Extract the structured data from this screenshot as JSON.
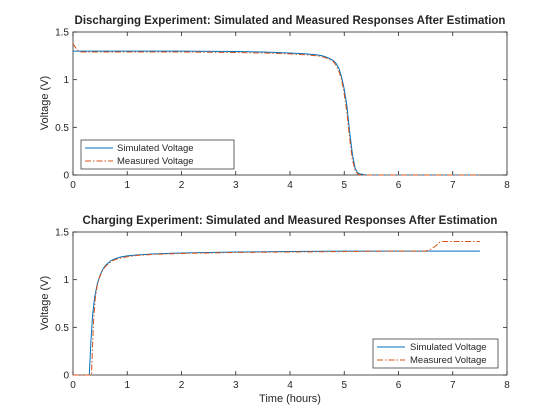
{
  "chart_data": [
    {
      "type": "line",
      "title": "Discharging Experiment: Simulated and Measured Responses After Estimation",
      "xlabel": "",
      "ylabel": "Voltage (V)",
      "xlim": [
        0,
        8
      ],
      "ylim": [
        0,
        1.5
      ],
      "xticks": [
        "0",
        "1",
        "2",
        "3",
        "4",
        "5",
        "6",
        "7",
        "8"
      ],
      "yticks": [
        "0",
        "0.5",
        "1",
        "1.5"
      ],
      "grid": false,
      "legend_position": "bottom-left",
      "series": [
        {
          "name": "Simulated Voltage",
          "color": "#0072BD",
          "style": "solid",
          "x": [
            0,
            0.5,
            1,
            2,
            3,
            3.5,
            4,
            4.3,
            4.5,
            4.6,
            4.7,
            4.8,
            4.85,
            4.9,
            4.95,
            5.0,
            5.05,
            5.1,
            5.15,
            5.2,
            5.25,
            5.3,
            5.4,
            5.6,
            6,
            7,
            7.5
          ],
          "y": [
            1.3,
            1.3,
            1.3,
            1.3,
            1.295,
            1.29,
            1.28,
            1.27,
            1.26,
            1.25,
            1.23,
            1.2,
            1.17,
            1.12,
            1.03,
            0.9,
            0.72,
            0.45,
            0.22,
            0.07,
            0.02,
            0.01,
            0.0,
            0.0,
            0.0,
            0.0,
            0.0
          ]
        },
        {
          "name": "Measured Voltage",
          "color": "#D95319",
          "style": "dashdot",
          "x": [
            0,
            0.03,
            0.08,
            0.15,
            0.5,
            1,
            2,
            3,
            3.5,
            4,
            4.3,
            4.5,
            4.6,
            4.7,
            4.8,
            4.85,
            4.9,
            4.95,
            5.0,
            5.05,
            5.1,
            5.15,
            5.2,
            5.25,
            5.3,
            5.4,
            5.6,
            6,
            7,
            7.5
          ],
          "y": [
            1.38,
            1.35,
            1.31,
            1.29,
            1.29,
            1.29,
            1.29,
            1.285,
            1.28,
            1.27,
            1.26,
            1.25,
            1.24,
            1.22,
            1.19,
            1.15,
            1.09,
            1.0,
            0.85,
            0.65,
            0.38,
            0.16,
            0.05,
            0.01,
            0.0,
            0.0,
            0.0,
            0.0,
            0.0,
            0.0
          ]
        }
      ]
    },
    {
      "type": "line",
      "title": "Charging Experiment: Simulated and Measured Responses After Estimation",
      "xlabel": "Time (hours)",
      "ylabel": "Voltage (V)",
      "xlim": [
        0,
        8
      ],
      "ylim": [
        0,
        1.5
      ],
      "xticks": [
        "0",
        "1",
        "2",
        "3",
        "4",
        "5",
        "6",
        "7",
        "8"
      ],
      "yticks": [
        "0",
        "0.5",
        "1",
        "1.5"
      ],
      "grid": false,
      "legend_position": "bottom-right",
      "series": [
        {
          "name": "Simulated Voltage",
          "color": "#0072BD",
          "style": "solid",
          "x": [
            0.3,
            0.33,
            0.36,
            0.4,
            0.45,
            0.5,
            0.55,
            0.6,
            0.7,
            0.8,
            0.9,
            1.0,
            1.2,
            1.5,
            2,
            3,
            4,
            5,
            6,
            7,
            7.5
          ],
          "y": [
            0.0,
            0.35,
            0.62,
            0.82,
            0.96,
            1.05,
            1.11,
            1.15,
            1.2,
            1.225,
            1.24,
            1.25,
            1.26,
            1.27,
            1.28,
            1.29,
            1.295,
            1.3,
            1.3,
            1.3,
            1.3
          ]
        },
        {
          "name": "Measured Voltage",
          "color": "#D95319",
          "style": "dashdot",
          "x": [
            0,
            0.3,
            0.34,
            0.36,
            0.38,
            0.41,
            0.45,
            0.5,
            0.55,
            0.6,
            0.7,
            0.8,
            0.9,
            1.0,
            1.2,
            1.5,
            2,
            3,
            4,
            5,
            6,
            6.5,
            6.6,
            6.7,
            6.75,
            6.8,
            7,
            7.5
          ],
          "y": [
            0.0,
            0.0,
            0.0,
            0.3,
            0.58,
            0.8,
            0.95,
            1.04,
            1.1,
            1.14,
            1.19,
            1.215,
            1.23,
            1.24,
            1.255,
            1.265,
            1.275,
            1.285,
            1.29,
            1.295,
            1.3,
            1.3,
            1.32,
            1.36,
            1.39,
            1.4,
            1.4,
            1.4
          ]
        }
      ]
    }
  ]
}
